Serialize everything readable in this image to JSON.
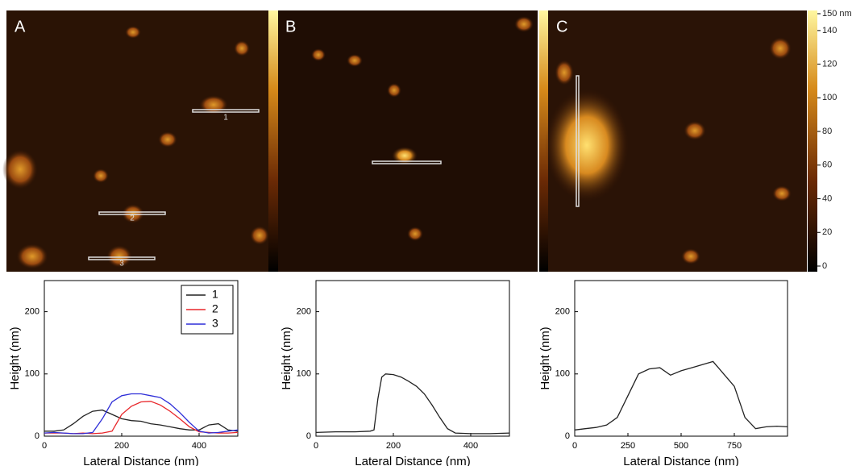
{
  "images": {
    "panels": [
      {
        "label": "A"
      },
      {
        "label": "B"
      },
      {
        "label": "C"
      }
    ],
    "colorbar": {
      "ylim": [
        0,
        150
      ],
      "yticks": [
        0,
        20,
        40,
        60,
        80,
        100,
        120,
        140,
        {
          "value": 150,
          "label": "150 nm"
        }
      ]
    }
  },
  "chart_data": [
    {
      "type": "line",
      "xlabel": "Lateral Distance (nm)",
      "ylabel": "Height (nm)",
      "xlim": [
        0,
        500
      ],
      "ylim": [
        0,
        250
      ],
      "xticks": [
        0,
        200,
        400
      ],
      "yticks": [
        0,
        100,
        200
      ],
      "legend": "upper-right",
      "x": [
        0,
        25,
        50,
        75,
        100,
        125,
        150,
        175,
        200,
        225,
        250,
        275,
        300,
        325,
        350,
        375,
        400,
        425,
        450,
        475,
        500
      ],
      "series": [
        {
          "name": "1",
          "color": "#222222",
          "values": [
            8,
            8,
            10,
            20,
            32,
            40,
            42,
            35,
            28,
            25,
            24,
            20,
            18,
            15,
            12,
            10,
            10,
            18,
            20,
            10,
            8
          ]
        },
        {
          "name": "2",
          "color": "#e8262a",
          "values": [
            5,
            5,
            5,
            4,
            5,
            4,
            5,
            8,
            35,
            48,
            55,
            56,
            50,
            40,
            28,
            15,
            7,
            6,
            5,
            5,
            6
          ]
        },
        {
          "name": "3",
          "color": "#2f2fd8",
          "values": [
            5,
            6,
            5,
            4,
            4,
            6,
            28,
            55,
            65,
            68,
            68,
            65,
            62,
            52,
            38,
            22,
            8,
            5,
            6,
            8,
            10
          ]
        }
      ]
    },
    {
      "type": "line",
      "xlabel": "Lateral Distance (nm)",
      "ylabel": "Height (nm)",
      "xlim": [
        0,
        500
      ],
      "ylim": [
        0,
        250
      ],
      "xticks": [
        0,
        200,
        400
      ],
      "yticks": [
        0,
        100,
        200
      ],
      "x": [
        0,
        50,
        100,
        140,
        150,
        160,
        170,
        180,
        200,
        220,
        240,
        260,
        280,
        300,
        320,
        340,
        360,
        400,
        450,
        500
      ],
      "series": [
        {
          "color": "#222222",
          "values": [
            6,
            7,
            7,
            8,
            10,
            60,
            95,
            100,
            99,
            95,
            88,
            80,
            68,
            50,
            30,
            12,
            5,
            4,
            4,
            5
          ]
        }
      ]
    },
    {
      "type": "line",
      "xlabel": "Lateral Distance (nm)",
      "ylabel": "Height (nm)",
      "xlim": [
        0,
        1000
      ],
      "ylim": [
        0,
        250
      ],
      "xticks": [
        0,
        250,
        500,
        750
      ],
      "yticks": [
        0,
        100,
        200
      ],
      "x": [
        0,
        50,
        100,
        150,
        200,
        250,
        300,
        350,
        400,
        450,
        500,
        550,
        600,
        650,
        700,
        750,
        800,
        850,
        900,
        950,
        1000
      ],
      "series": [
        {
          "color": "#222222",
          "values": [
            10,
            12,
            14,
            18,
            30,
            65,
            100,
            108,
            110,
            98,
            105,
            110,
            115,
            120,
            100,
            80,
            30,
            12,
            15,
            16,
            15
          ]
        }
      ]
    }
  ]
}
